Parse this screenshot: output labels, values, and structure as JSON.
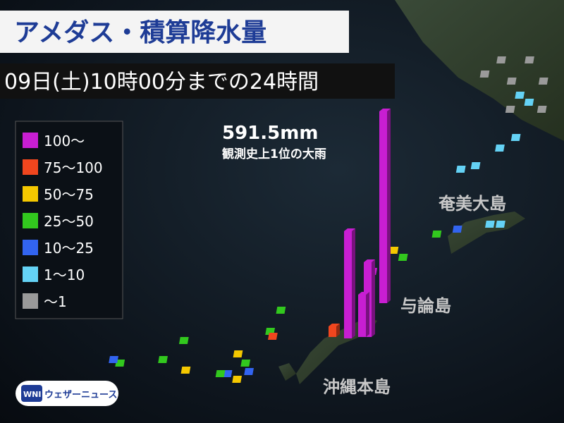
{
  "header": {
    "title": "アメダス・積算降水量",
    "subtitle": "09日(土)10時00分までの24時間"
  },
  "legend": [
    {
      "label": "100～",
      "color": "#c81ed2"
    },
    {
      "label": "75～100",
      "color": "#f0461e"
    },
    {
      "label": "50～75",
      "color": "#f5c800"
    },
    {
      "label": "25～50",
      "color": "#32c81e"
    },
    {
      "label": "10～25",
      "color": "#3264f0"
    },
    {
      "label": "1～10",
      "color": "#64d2f5"
    },
    {
      "label": "～1",
      "color": "#9a9a9a"
    }
  ],
  "annotation": {
    "value": "591.5mm",
    "note": "観測史上1位の大雨"
  },
  "places": [
    "奄美大島",
    "与論島",
    "沖縄本島"
  ],
  "logo": {
    "mark": "WNI",
    "name": "ウェザーニュース"
  }
}
